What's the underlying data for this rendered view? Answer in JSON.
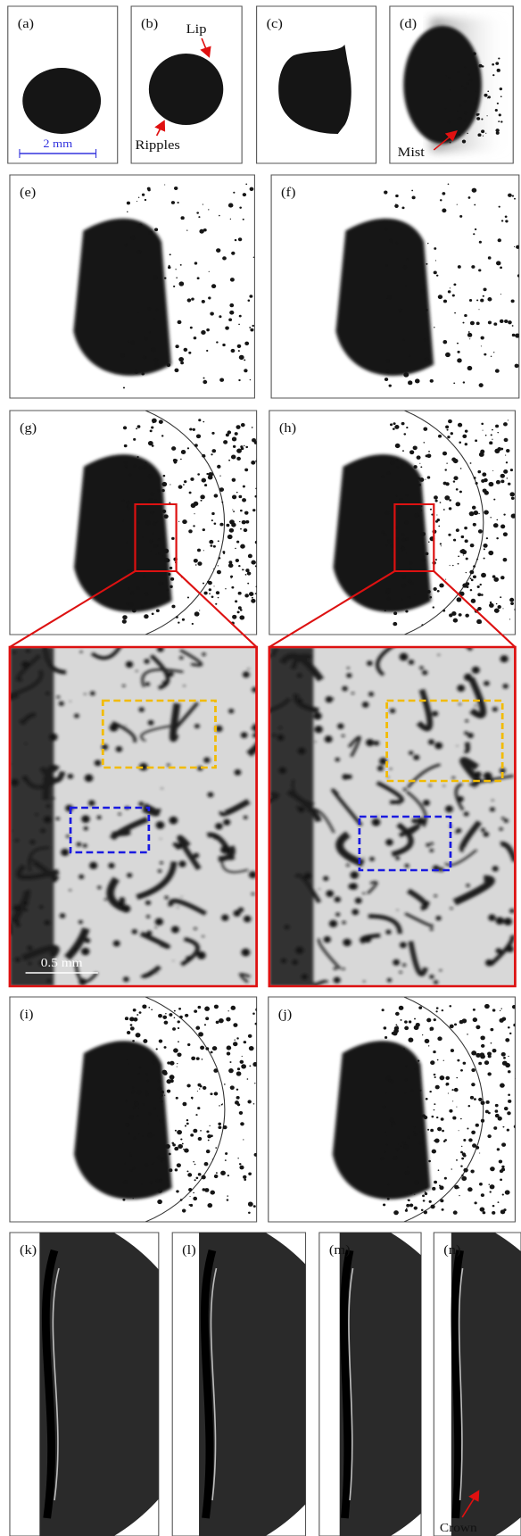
{
  "panels": [
    {
      "label": "(a)"
    },
    {
      "label": "(b)"
    },
    {
      "label": "(c)"
    },
    {
      "label": "(d)"
    },
    {
      "label": "(e)"
    },
    {
      "label": "(f)"
    },
    {
      "label": "(g)"
    },
    {
      "label": "(h)"
    },
    {
      "label": "(i)"
    },
    {
      "label": "(j)"
    },
    {
      "label": "(k)"
    },
    {
      "label": "(l)"
    },
    {
      "label": "(m)"
    },
    {
      "label": "(n)"
    }
  ],
  "annotations": {
    "scale_large": "2 mm",
    "lip": "Lip",
    "ripples": "Ripples",
    "mist": "Mist",
    "scale_small": "0.5 mm",
    "crown": "Crown"
  }
}
